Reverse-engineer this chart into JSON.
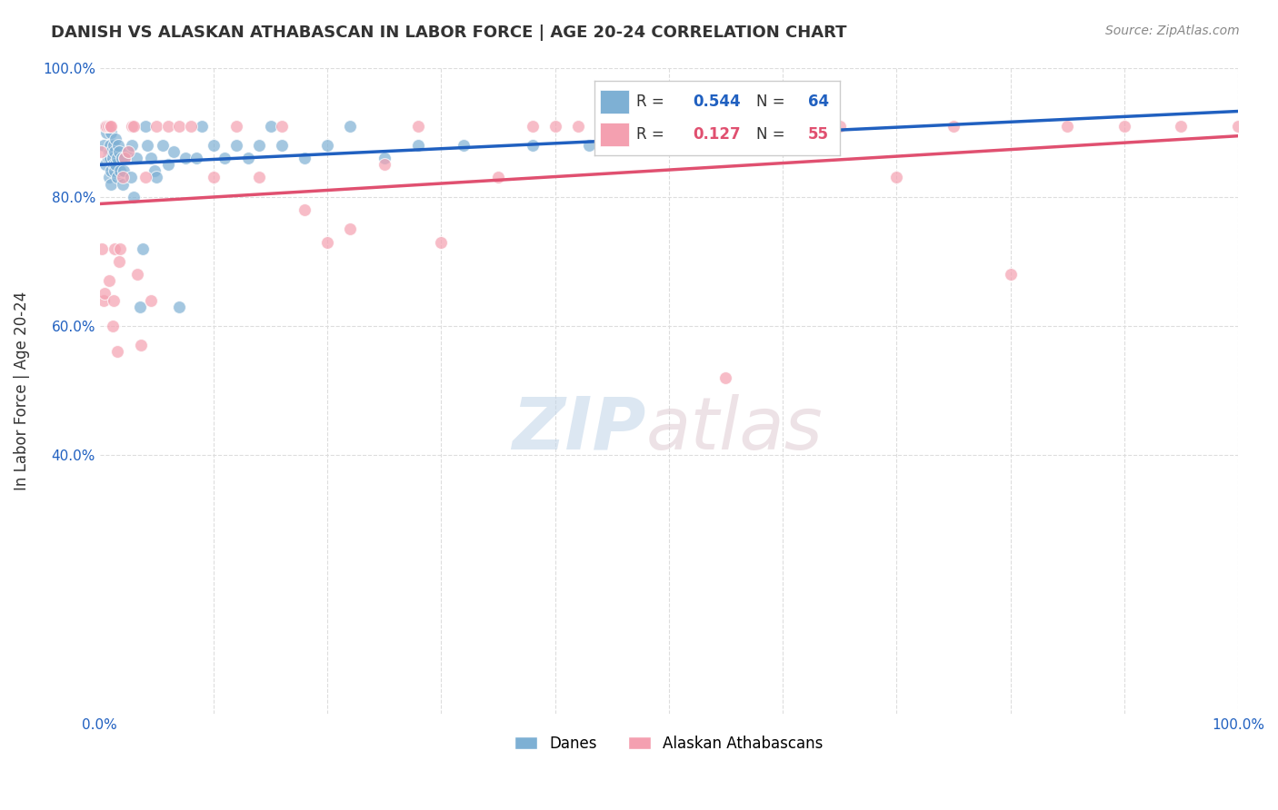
{
  "title": "DANISH VS ALASKAN ATHABASCAN IN LABOR FORCE | AGE 20-24 CORRELATION CHART",
  "source": "Source: ZipAtlas.com",
  "ylabel": "In Labor Force | Age 20-24",
  "xlim": [
    0.0,
    1.0
  ],
  "ylim": [
    0.0,
    1.0
  ],
  "background_color": "#ffffff",
  "grid_color": "#dddddd",
  "danes_color": "#7eb0d4",
  "athabascan_color": "#f4a0b0",
  "danes_line_color": "#2060c0",
  "athabascan_line_color": "#e05070",
  "danes_R": 0.544,
  "danes_N": 64,
  "athabascan_R": 0.127,
  "athabascan_N": 55,
  "legend_label_danes": "Danes",
  "legend_label_athabascan": "Alaskan Athabascans",
  "legend_text_color": "#333333",
  "legend_blue": "#2060c0",
  "legend_pink": "#e05070",
  "danes_x": [
    0.003,
    0.005,
    0.005,
    0.006,
    0.007,
    0.008,
    0.008,
    0.009,
    0.009,
    0.01,
    0.01,
    0.01,
    0.01,
    0.011,
    0.012,
    0.012,
    0.013,
    0.013,
    0.014,
    0.014,
    0.015,
    0.015,
    0.016,
    0.017,
    0.018,
    0.019,
    0.02,
    0.021,
    0.022,
    0.025,
    0.027,
    0.028,
    0.03,
    0.032,
    0.035,
    0.038,
    0.04,
    0.042,
    0.045,
    0.048,
    0.05,
    0.055,
    0.06,
    0.065,
    0.07,
    0.075,
    0.085,
    0.09,
    0.1,
    0.11,
    0.12,
    0.13,
    0.14,
    0.15,
    0.16,
    0.18,
    0.2,
    0.22,
    0.25,
    0.28,
    0.32,
    0.38,
    0.43,
    0.55
  ],
  "danes_y": [
    0.88,
    0.91,
    0.85,
    0.9,
    0.86,
    0.87,
    0.83,
    0.88,
    0.86,
    0.84,
    0.82,
    0.87,
    0.9,
    0.86,
    0.85,
    0.88,
    0.84,
    0.87,
    0.85,
    0.89,
    0.86,
    0.83,
    0.88,
    0.87,
    0.84,
    0.86,
    0.82,
    0.84,
    0.86,
    0.87,
    0.83,
    0.88,
    0.8,
    0.86,
    0.63,
    0.72,
    0.91,
    0.88,
    0.86,
    0.84,
    0.83,
    0.88,
    0.85,
    0.87,
    0.63,
    0.86,
    0.86,
    0.91,
    0.88,
    0.86,
    0.88,
    0.86,
    0.88,
    0.91,
    0.88,
    0.86,
    0.88,
    0.91,
    0.86,
    0.88,
    0.88,
    0.88,
    0.88,
    0.88
  ],
  "athabascan_x": [
    0.001,
    0.002,
    0.003,
    0.004,
    0.005,
    0.006,
    0.007,
    0.008,
    0.009,
    0.01,
    0.011,
    0.012,
    0.013,
    0.015,
    0.017,
    0.018,
    0.02,
    0.022,
    0.025,
    0.028,
    0.03,
    0.033,
    0.036,
    0.04,
    0.045,
    0.05,
    0.06,
    0.07,
    0.08,
    0.1,
    0.12,
    0.14,
    0.16,
    0.18,
    0.2,
    0.22,
    0.25,
    0.28,
    0.3,
    0.35,
    0.38,
    0.4,
    0.42,
    0.45,
    0.5,
    0.55,
    0.6,
    0.65,
    0.7,
    0.75,
    0.8,
    0.85,
    0.9,
    0.95,
    1.0
  ],
  "athabascan_y": [
    0.87,
    0.72,
    0.64,
    0.65,
    0.91,
    0.91,
    0.91,
    0.67,
    0.91,
    0.91,
    0.6,
    0.64,
    0.72,
    0.56,
    0.7,
    0.72,
    0.83,
    0.86,
    0.87,
    0.91,
    0.91,
    0.68,
    0.57,
    0.83,
    0.64,
    0.91,
    0.91,
    0.91,
    0.91,
    0.83,
    0.91,
    0.83,
    0.91,
    0.78,
    0.73,
    0.75,
    0.85,
    0.91,
    0.73,
    0.83,
    0.91,
    0.91,
    0.91,
    0.91,
    0.88,
    0.52,
    0.91,
    0.91,
    0.83,
    0.91,
    0.68,
    0.91,
    0.91,
    0.91,
    0.91
  ]
}
